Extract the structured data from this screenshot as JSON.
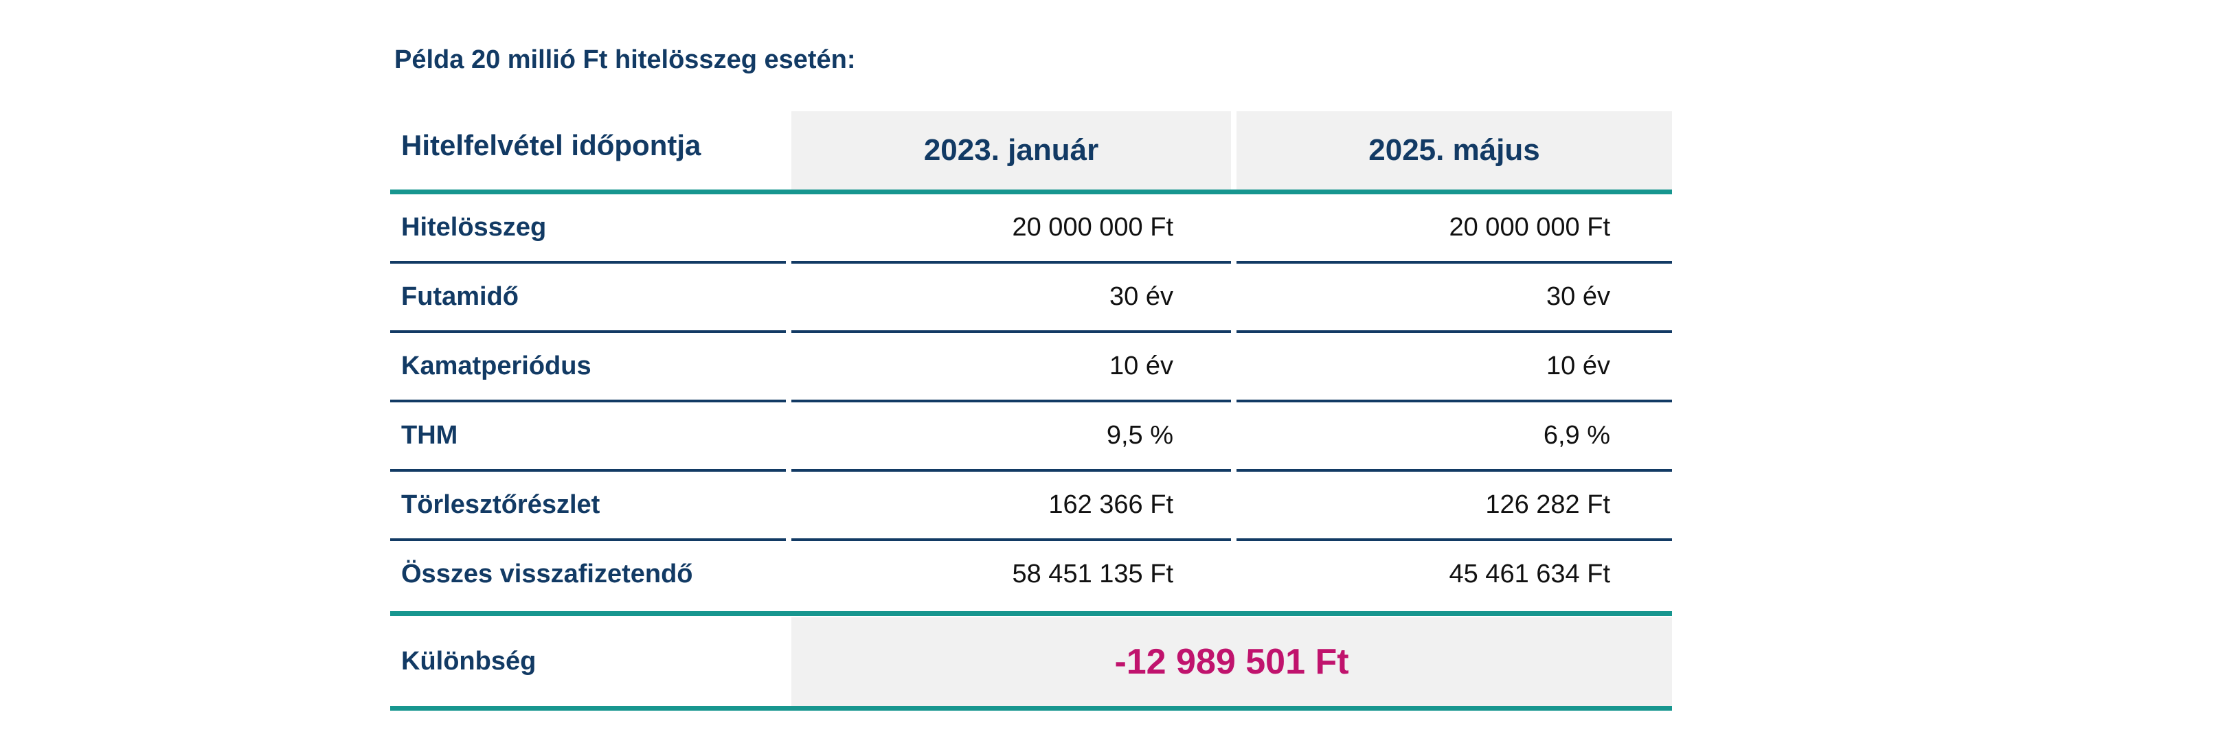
{
  "caption": "Példa 20 millió Ft hitelösszeg esetén:",
  "table": {
    "header_label": "Hitelfelvétel időpontja",
    "columns": [
      "2023. január",
      "2025. május"
    ],
    "rows": [
      {
        "label": "Hitelösszeg",
        "values": [
          "20 000 000 Ft",
          "20 000 000 Ft"
        ]
      },
      {
        "label": "Futamidő",
        "values": [
          "30 év",
          "30 év"
        ]
      },
      {
        "label": "Kamatperiódus",
        "values": [
          "10 év",
          "10 év"
        ]
      },
      {
        "label": "THM",
        "values": [
          "9,5 %",
          "6,9 %"
        ]
      },
      {
        "label": "Törlesztőrészlet",
        "values": [
          "162 366 Ft",
          "126 282 Ft"
        ]
      },
      {
        "label": "Összes visszafizetendő",
        "values": [
          "58 451 135 Ft",
          "45 461 634 Ft"
        ]
      }
    ],
    "difference_label": "Különbség",
    "difference_value": "-12 989 501 Ft"
  },
  "colors": {
    "navy": "#123a64",
    "teal": "#17968f",
    "magenta": "#c0136d",
    "header_bg": "#f1f1f1"
  }
}
